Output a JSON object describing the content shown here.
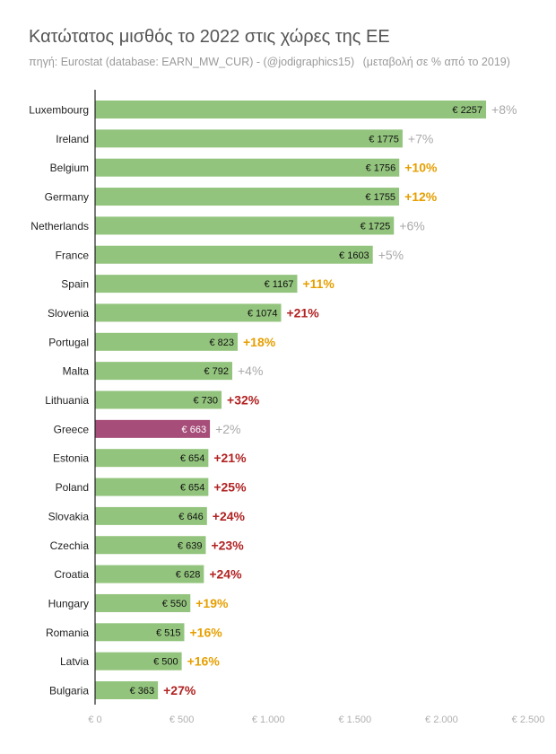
{
  "header": {
    "title": "Κατώτατος μισθός το 2022 στις χώρες της ΕΕ",
    "source": "πηγή: Eurostat (database: EARN_MW_CUR) - (@jodigraphics15)",
    "note": "(μεταβολή σε % από το 2019)"
  },
  "colors": {
    "bar": "#93c47d",
    "highlight": "#a64d79",
    "change_low": "#a9a9a9",
    "change_mid": "#e69f00",
    "change_high": "#b22222",
    "axis_tick": "#b0b0b0",
    "grid": "#e6e6e6"
  },
  "chart_data": {
    "type": "bar",
    "orientation": "horizontal",
    "title": "Κατώτατος μισθός το 2022 στις χώρες της ΕΕ",
    "subtitle": "πηγή: Eurostat (database: EARN_MW_CUR) - (@jodigraphics15)  (μεταβολή σε % από το 2019)",
    "categories": [
      "Luxembourg",
      "Ireland",
      "Belgium",
      "Germany",
      "Netherlands",
      "France",
      "Spain",
      "Slovenia",
      "Portugal",
      "Malta",
      "Lithuania",
      "Greece",
      "Estonia",
      "Poland",
      "Slovakia",
      "Czechia",
      "Croatia",
      "Hungary",
      "Romania",
      "Latvia",
      "Bulgaria"
    ],
    "values": [
      2257,
      1775,
      1756,
      1755,
      1725,
      1603,
      1167,
      1074,
      823,
      792,
      730,
      663,
      654,
      654,
      646,
      639,
      628,
      550,
      515,
      500,
      363
    ],
    "value_labels": [
      "€ 2257",
      "€ 1775",
      "€ 1756",
      "€ 1755",
      "€ 1725",
      "€ 1603",
      "€ 1167",
      "€ 1074",
      "€ 823",
      "€ 792",
      "€ 730",
      "€ 663",
      "€ 654",
      "€ 654",
      "€ 646",
      "€ 639",
      "€ 628",
      "€ 550",
      "€ 515",
      "€ 500",
      "€ 363"
    ],
    "change_labels": [
      "+8%",
      "+7%",
      "+10%",
      "+12%",
      "+6%",
      "+5%",
      "+11%",
      "+21%",
      "+18%",
      "+4%",
      "+32%",
      "+2%",
      "+21%",
      "+25%",
      "+24%",
      "+23%",
      "+24%",
      "+19%",
      "+16%",
      "+16%",
      "+27%"
    ],
    "change_levels": [
      "low",
      "low",
      "mid",
      "mid",
      "low",
      "low",
      "mid",
      "high",
      "mid",
      "low",
      "high",
      "low",
      "high",
      "high",
      "high",
      "high",
      "high",
      "mid",
      "mid",
      "mid",
      "high"
    ],
    "highlight": "Greece",
    "xlim": [
      0,
      2500
    ],
    "xticks": [
      0,
      500,
      1000,
      1500,
      2000,
      2500
    ],
    "xtick_labels": [
      "€ 0",
      "€ 500",
      "€ 1.000",
      "€ 1.500",
      "€ 2.000",
      "€ 2.500"
    ],
    "xlabel": "",
    "ylabel": "",
    "grid": false,
    "legend": "none"
  }
}
